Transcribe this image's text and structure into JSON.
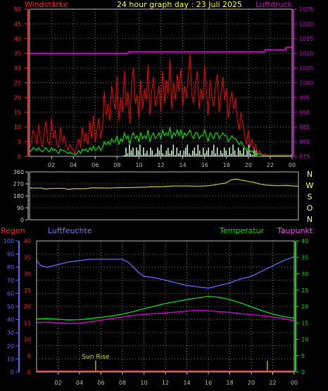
{
  "header": {
    "left_label": "Windstärke",
    "title": "24 hour graph day : 23 Juli 2025",
    "right_label": "Luftdruck"
  },
  "colors": {
    "background": "#000000",
    "frame": "#bbbbbb",
    "grid": "#7a7a7a",
    "wind_axis": "#ff2a2a",
    "pressure": "#cc00cc",
    "gust": "#ff0000",
    "avg_wind": "#00dd00",
    "bars": "#ccf0cc",
    "direction": "#bcbc1a",
    "direction_axis": "#cccccc",
    "compass": "#ffff66",
    "rain": "#ff2222",
    "humidity": "#6666ff",
    "temperature": "#00dd00",
    "dewpoint": "#dd00dd",
    "sun": "#dddd00",
    "label_red": "#ff2222",
    "label_blue": "#7777ff",
    "label_green": "#00dd00",
    "label_pink": "#ff44ff"
  },
  "time_ticks": [
    "02",
    "04",
    "06",
    "08",
    "10",
    "12",
    "14",
    "16",
    "18",
    "20",
    "22",
    "00"
  ],
  "chart_data": [
    {
      "type": "line",
      "name": "wind-pressure-panel",
      "x_range_hours": [
        0,
        24
      ],
      "series_labels": [
        "Windstärke",
        "Luftdruck"
      ],
      "left_axis": {
        "ticks": [
          "0",
          "5",
          "10",
          "15",
          "20",
          "25",
          "30",
          "35",
          "40",
          "45",
          "50"
        ],
        "ylim": [
          0,
          50
        ]
      },
      "right_axis": {
        "ticks": [
          "975",
          "980",
          "985",
          "990",
          "995",
          "1000",
          "1005",
          "1010",
          "1015",
          "1020",
          "1025"
        ],
        "ylim": [
          975,
          1025
        ]
      },
      "pressure": {
        "x": [
          0,
          9.0,
          9.05,
          21.5,
          21.55,
          23.4,
          23.45,
          24
        ],
        "y": [
          1010,
          1010,
          1010.5,
          1010.5,
          1011.2,
          1011.2,
          1012,
          1012
        ]
      },
      "gust_samples": [
        3,
        5,
        9,
        7,
        4,
        11,
        6,
        3,
        8,
        12,
        5,
        4,
        13,
        6,
        9,
        4,
        3,
        10,
        5,
        7,
        4,
        2,
        4,
        3,
        2,
        1,
        4,
        6,
        3,
        10,
        5,
        8,
        4,
        12,
        6,
        14,
        5,
        9,
        13,
        6,
        10,
        22,
        14,
        18,
        12,
        24,
        19,
        16,
        27,
        12,
        20,
        15,
        29,
        17,
        22,
        11,
        25,
        30,
        18,
        21,
        13,
        26,
        16,
        23,
        19,
        31,
        14,
        22,
        27,
        17,
        20,
        24,
        15,
        29,
        18,
        26,
        21,
        33,
        16,
        25,
        19,
        28,
        22,
        30,
        17,
        24,
        20,
        27,
        35,
        21,
        18,
        25,
        29,
        16,
        23,
        19,
        31,
        22,
        14,
        26,
        20,
        17,
        24,
        28,
        15,
        21,
        27,
        19,
        23,
        13,
        18,
        22,
        16,
        20,
        12,
        9,
        15,
        11,
        7,
        4,
        9,
        3,
        6,
        2,
        4,
        1,
        2,
        1,
        0.5,
        1,
        0.5,
        0.5,
        0.5,
        0.5,
        0.5,
        0.5,
        0.5,
        0.5,
        0.5,
        0.5,
        0.5,
        0.5,
        0.5,
        0.5,
        0.5
      ],
      "avg_samples": [
        1.5,
        2,
        3,
        2.5,
        2,
        3,
        2,
        1.5,
        2.5,
        3,
        2,
        1.5,
        3,
        2,
        2.5,
        1.5,
        1,
        2.5,
        2,
        2,
        1.5,
        1,
        1.5,
        1,
        1,
        0.5,
        1,
        2,
        1,
        2.5,
        2,
        2.5,
        1.5,
        3,
        2,
        3.5,
        2,
        2.5,
        3.5,
        2,
        3,
        5,
        4,
        5,
        4,
        6,
        5,
        5,
        7,
        4,
        6,
        5,
        8,
        6,
        7,
        4,
        7,
        8,
        6,
        7,
        5,
        8,
        6,
        7,
        6,
        9,
        5,
        7,
        8,
        6,
        7,
        8,
        6,
        9,
        7,
        8,
        7,
        10,
        6,
        8,
        7,
        9,
        7,
        9,
        6,
        8,
        7,
        8,
        9,
        7,
        6,
        8,
        8,
        6,
        7,
        7,
        9,
        7,
        5,
        8,
        7,
        6,
        8,
        8,
        6,
        7,
        8,
        7,
        7,
        5,
        6,
        7,
        6,
        6,
        5,
        4,
        5,
        4,
        3,
        2,
        3,
        1.5,
        2,
        1,
        1.5,
        0.5,
        1,
        0.5,
        0.2,
        0.3,
        0.2,
        0.2,
        0.2,
        0.2,
        0.2,
        0.2,
        0.2,
        0.2,
        0.2,
        0.2,
        0.2,
        0.2,
        0.2,
        0.2,
        0.2
      ],
      "bar_samples_start_hour": 8.6,
      "bar_samples": [
        0.5,
        3,
        1,
        4,
        2,
        3,
        0.5,
        3,
        2,
        4,
        0.5,
        3,
        1,
        2,
        0.5,
        3,
        2,
        0.5,
        1,
        3,
        2,
        4,
        1,
        0.5,
        2,
        3,
        1,
        2,
        4,
        0.5,
        3,
        1,
        2,
        0.5,
        2,
        3,
        4,
        1,
        0.5,
        2,
        3,
        1,
        4,
        2,
        0.5,
        3,
        1,
        2,
        3,
        0.5,
        2,
        4,
        1,
        3,
        0.5,
        2,
        1,
        3,
        2,
        0.5,
        3,
        1,
        4,
        2,
        0.5,
        3,
        2,
        1,
        3,
        0.5,
        2,
        4,
        1,
        0.5,
        3,
        2
      ]
    },
    {
      "type": "line",
      "name": "wind-direction-panel",
      "axis": {
        "ticks": [
          "0",
          "90",
          "180",
          "270",
          "360"
        ],
        "ylim": [
          0,
          360
        ]
      },
      "compass_labels": [
        "N",
        "W",
        "S",
        "O",
        "N"
      ],
      "x": [
        0,
        1,
        1.5,
        2,
        3,
        3.5,
        4,
        5,
        5.5,
        6,
        7,
        8,
        9,
        10,
        11,
        12,
        13,
        14,
        15,
        16,
        16.5,
        17,
        17.5,
        18,
        18.5,
        19,
        20,
        20.5,
        21,
        22,
        23,
        24
      ],
      "y": [
        238,
        238,
        232,
        236,
        236,
        230,
        234,
        234,
        240,
        240,
        238,
        242,
        242,
        245,
        248,
        250,
        254,
        254,
        252,
        256,
        262,
        270,
        276,
        300,
        306,
        296,
        282,
        270,
        262,
        256,
        258,
        252
      ]
    },
    {
      "type": "line",
      "name": "climate-panel",
      "series_labels": [
        "Regen",
        "Luftfeuchte",
        "Temperatur",
        "Taupunkt"
      ],
      "rain_axis": {
        "ticks": [
          "0",
          "5",
          "10",
          "15",
          "20",
          "25",
          "30",
          "35",
          "40"
        ],
        "ylim": [
          0,
          40
        ]
      },
      "humidity_axis": {
        "ticks": [
          "0",
          "10",
          "20",
          "30",
          "40",
          "50",
          "60",
          "70",
          "80",
          "90",
          "100"
        ],
        "ylim": [
          0,
          100
        ]
      },
      "temp_axis": {
        "ticks": [
          "0",
          "5",
          "10",
          "15",
          "20",
          "25",
          "30",
          "35",
          "40"
        ],
        "ylim": [
          0,
          40
        ]
      },
      "humidity": {
        "x": [
          0,
          0.4,
          1,
          2,
          3,
          4,
          5,
          6,
          7,
          8,
          8.5,
          9,
          9.5,
          10,
          11,
          12,
          13,
          14,
          15,
          16,
          17,
          18,
          19,
          20,
          21,
          22,
          23,
          24
        ],
        "y": [
          85,
          81,
          80,
          82,
          84,
          85,
          86,
          86,
          86,
          86,
          84,
          80,
          76,
          73,
          72,
          70,
          68,
          66,
          65,
          64,
          66,
          68,
          71,
          73,
          77,
          81,
          85,
          88
        ]
      },
      "temperature": {
        "x": [
          0,
          1,
          2,
          3,
          4,
          5,
          6,
          7,
          8,
          9,
          10,
          11,
          12,
          13,
          14,
          15,
          16,
          17,
          18,
          19,
          20,
          21,
          22,
          23,
          24
        ],
        "y": [
          16.2,
          16.3,
          16.1,
          15.9,
          16.0,
          16.3,
          16.7,
          17.1,
          17.7,
          18.4,
          19.3,
          20.1,
          20.9,
          21.5,
          22.1,
          22.6,
          23.1,
          22.8,
          22.1,
          21.1,
          19.9,
          18.7,
          17.7,
          16.9,
          16.4
        ]
      },
      "dewpoint": {
        "x": [
          0,
          1,
          2,
          3,
          4,
          5,
          6,
          7,
          8,
          9,
          10,
          11,
          12,
          13,
          14,
          15,
          16,
          17,
          18,
          19,
          20,
          21,
          22,
          23,
          24
        ],
        "y": [
          15.1,
          15.2,
          15.0,
          14.8,
          14.9,
          15.3,
          15.8,
          16.3,
          16.8,
          17.3,
          17.6,
          17.8,
          18.0,
          18.3,
          18.6,
          18.8,
          18.7,
          18.4,
          18.2,
          17.8,
          17.5,
          17.2,
          16.8,
          16.3,
          15.6
        ]
      },
      "rain": {
        "x": [
          0,
          24
        ],
        "y": [
          0,
          0
        ]
      },
      "sun_rise": {
        "label": "Sun Rise",
        "hour": 5.5
      },
      "sun_set": {
        "hour": 21.5
      }
    }
  ]
}
